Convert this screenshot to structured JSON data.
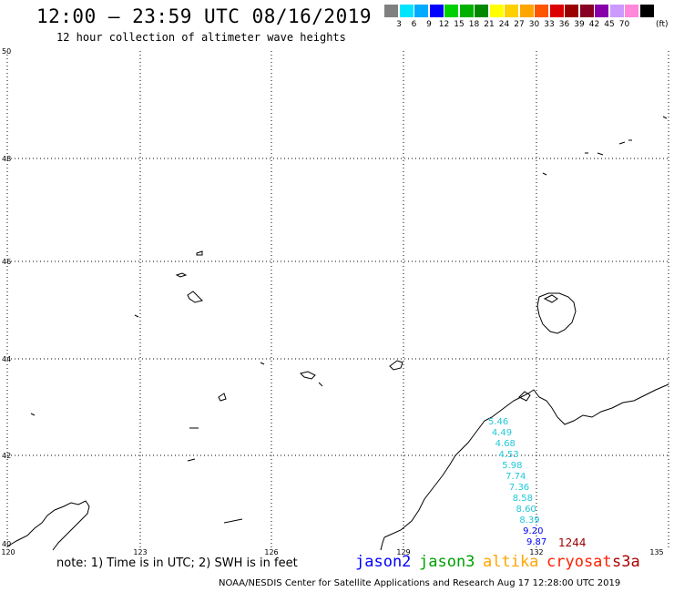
{
  "header": {
    "title": "12:00 — 23:59 UTC 08/16/2019",
    "subtitle": "12 hour collection of altimeter wave heights"
  },
  "legend": {
    "colors": [
      "#808080",
      "#00e5ff",
      "#00aaff",
      "#0000ff",
      "#00d000",
      "#00b000",
      "#008800",
      "#ffff00",
      "#ffd000",
      "#ffa500",
      "#ff5500",
      "#dd0000",
      "#990000",
      "#880022",
      "#8800aa",
      "#cc99ff",
      "#ff88dd",
      "#000000"
    ],
    "labels": [
      "3",
      "6",
      "9",
      "12",
      "15",
      "18",
      "21",
      "24",
      "27",
      "30",
      "33",
      "36",
      "39",
      "42",
      "45",
      "70"
    ],
    "unit": "(ft)"
  },
  "axes": {
    "lat_labels": [
      "50",
      "48",
      "46",
      "44",
      "42",
      "40"
    ],
    "lon_labels": [
      "120",
      "123",
      "126",
      "129",
      "132",
      "135"
    ]
  },
  "observations": {
    "cyan_color": "#22c8d8",
    "values": [
      "5.46",
      "4.49",
      "4.68",
      "4.53",
      "5.98",
      "7.74",
      "7.36",
      "8.58",
      "8.60",
      "8.39",
      "9.20",
      "9.87"
    ],
    "pass_time": "1244",
    "pass_time_color": "#990000"
  },
  "footer": {
    "note": "note:  1) Time is in UTC;  2) SWH is in feet",
    "satellites": [
      {
        "name": "jason2",
        "color": "#0000ff"
      },
      {
        "name": "jason3",
        "color": "#00a000"
      },
      {
        "name": "altika",
        "color": "#ffa500"
      },
      {
        "name": "cryosat",
        "color": "#ff2000"
      },
      {
        "name": "s3a",
        "color": "#aa0000"
      }
    ],
    "credit": "NOAA/NESDIS Center for Satellite Applications and Research    Aug 17 12:28:00 UTC 2019"
  }
}
